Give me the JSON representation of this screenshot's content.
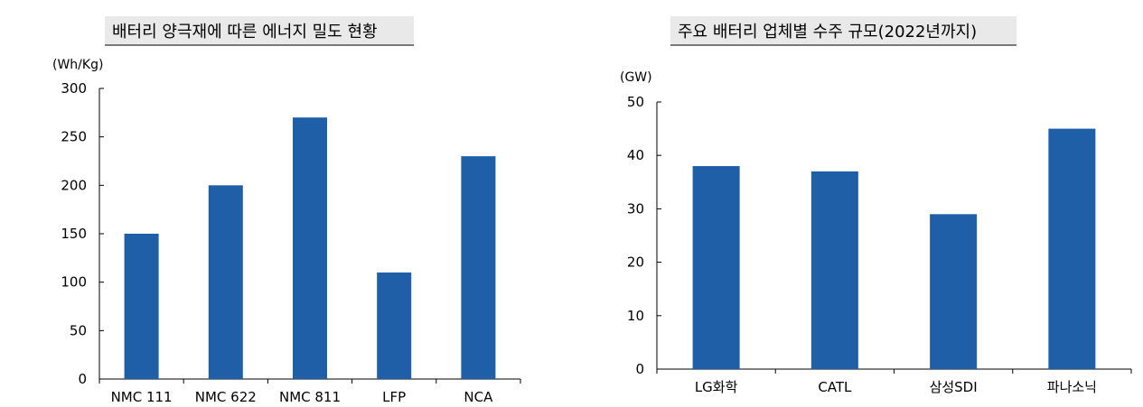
{
  "chart_data": [
    {
      "type": "bar",
      "title": "배터리 양극재에 따른 에너지 밀도 현황",
      "ylabel": "(Wh/Kg)",
      "xlabel": "",
      "categories": [
        "NMC 111",
        "NMC 622",
        "NMC 811",
        "LFP",
        "NCA"
      ],
      "values": [
        150,
        200,
        270,
        110,
        230
      ],
      "ylim": [
        0,
        300
      ],
      "yticks": [
        0,
        50,
        100,
        150,
        200,
        250,
        300
      ],
      "bar_color": "#1f5fa8",
      "grid": false,
      "legend": "none"
    },
    {
      "type": "bar",
      "title": "주요 배터리 업체별 수주 규모(2022년까지)",
      "ylabel": "(GW)",
      "xlabel": "",
      "categories": [
        "LG화학",
        "CATL",
        "삼성SDI",
        "파나소닉"
      ],
      "values": [
        38,
        37,
        29,
        45
      ],
      "ylim": [
        0,
        50
      ],
      "yticks": [
        0,
        10,
        20,
        30,
        40,
        50
      ],
      "bar_color": "#1f5fa8",
      "grid": false,
      "legend": "none"
    }
  ]
}
